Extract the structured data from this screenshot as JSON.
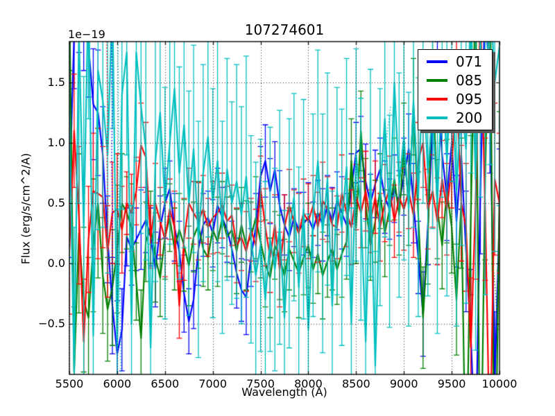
{
  "chart_data": {
    "type": "line",
    "title": "107274601",
    "xlabel": "Wavelength (A)",
    "ylabel": "Flux (erg/s/cm^2/A)",
    "offset_text": "1e−19",
    "xlim": [
      5500,
      10000
    ],
    "ylim": [
      -0.92,
      1.84
    ],
    "xticks": [
      5500,
      6000,
      6500,
      7000,
      7500,
      8000,
      8500,
      9000,
      9500,
      10000
    ],
    "xtick_labels": [
      "5500",
      "6000",
      "6500",
      "7000",
      "7500",
      "8000",
      "8500",
      "9000",
      "9500",
      "10000"
    ],
    "yticks": [
      -0.5,
      0.0,
      0.5,
      1.0,
      1.5
    ],
    "ytick_labels": [
      "−0.5",
      "0.0",
      "0.5",
      "1.0",
      "1.5"
    ],
    "grid": true,
    "grid_style": "dotted",
    "x_start": 5500,
    "x_step": 50,
    "legend": {
      "location": "upper right",
      "shadow": true,
      "entries": [
        {
          "label": "071",
          "color": "#0000ff"
        },
        {
          "label": "085",
          "color": "#008000"
        },
        {
          "label": "095",
          "color": "#ff0000"
        },
        {
          "label": "200",
          "color": "#00bfbf"
        }
      ]
    },
    "series": [
      {
        "name": "071",
        "color": "#0000ff",
        "values": [
          0.55,
          1.9,
          2.3,
          2.1,
          1.8,
          1.32,
          1.25,
          0.9,
          0.2,
          -0.35,
          -0.75,
          -0.55,
          0.22,
          0.12,
          0.2,
          0.28,
          0.36,
          0.22,
          -0.05,
          0.3,
          0.5,
          0.62,
          0.3,
          0.1,
          -0.25,
          -0.48,
          -0.3,
          0.12,
          0.32,
          0.38,
          0.25,
          0.48,
          0.38,
          0.28,
          0.12,
          -0.08,
          -0.22,
          -0.28,
          0.05,
          0.3,
          0.72,
          0.85,
          0.6,
          0.78,
          0.48,
          0.32,
          0.22,
          0.38,
          0.28,
          0.33,
          0.38,
          0.28,
          0.42,
          0.32,
          0.48,
          0.35,
          0.52,
          0.42,
          0.32,
          0.62,
          0.92,
          0.95,
          0.68,
          0.5,
          0.66,
          0.78,
          0.55,
          0.45,
          0.62,
          0.5,
          0.72,
          0.95,
          0.5,
          0.05,
          -0.42,
          0.3,
          1.15,
          1.5,
          0.9,
          0.55,
          1.0,
          0.35,
          0.9,
          0.1,
          -0.6,
          -1.6,
          0.6,
          2.2,
          1.4,
          -1.0,
          0.4
        ],
        "errors": [
          0.5,
          0.45,
          0.55,
          0.5,
          0.42,
          0.46,
          0.52,
          0.4,
          0.36,
          0.4,
          0.44,
          0.34,
          0.24,
          0.3,
          0.26,
          0.33,
          0.27,
          0.24,
          0.31,
          0.26,
          0.29,
          0.23,
          0.28,
          0.25,
          0.32,
          0.27,
          0.24,
          0.3,
          0.26,
          0.22,
          0.28,
          0.31,
          0.25,
          0.27,
          0.23,
          0.29,
          0.26,
          0.31,
          0.24,
          0.28,
          0.25,
          0.3,
          0.27,
          0.23,
          0.29,
          0.25,
          0.28,
          0.24,
          0.31,
          0.26,
          0.29,
          0.23,
          0.27,
          0.3,
          0.25,
          0.28,
          0.24,
          0.3,
          0.26,
          0.29,
          0.25,
          0.27,
          0.31,
          0.24,
          0.28,
          0.26,
          0.3,
          0.25,
          0.28,
          0.27,
          0.32,
          0.29,
          0.33,
          0.3,
          0.35,
          0.31,
          0.28,
          0.34,
          0.3,
          0.36,
          0.32,
          0.38,
          0.45,
          0.5,
          0.55,
          0.6,
          0.52,
          0.56,
          0.65,
          0.6,
          0.55
        ]
      },
      {
        "name": "085",
        "color": "#008000",
        "values": [
          2.2,
          -0.9,
          0.25,
          -0.3,
          -0.45,
          0.15,
          0.5,
          -0.1,
          -0.38,
          -0.2,
          0.12,
          0.5,
          0.42,
          0.3,
          -0.15,
          -0.62,
          0.18,
          0.3,
          0.05,
          -0.12,
          0.22,
          0.38,
          0.12,
          0.28,
          0.15,
          -0.02,
          0.22,
          0.32,
          0.12,
          0.05,
          0.28,
          0.18,
          0.38,
          0.22,
          0.28,
          0.1,
          0.32,
          0.15,
          0.22,
          0.38,
          0.18,
          0.0,
          -0.12,
          0.15,
          0.05,
          -0.1,
          0.12,
          0.02,
          -0.08,
          0.05,
          0.15,
          -0.05,
          0.08,
          -0.1,
          0.02,
          0.12,
          -0.05,
          0.08,
          0.18,
          0.85,
          0.3,
          1.1,
          0.5,
          0.15,
          0.35,
          0.6,
          0.25,
          0.45,
          0.7,
          0.4,
          0.95,
          0.5,
          1.3,
          0.4,
          -0.45,
          0.2,
          1.6,
          0.45,
          0.15,
          0.6,
          0.3,
          -0.3,
          0.5,
          -1.9,
          0.4,
          2.3,
          -2.1,
          0.7,
          2.5,
          -2.3,
          0.6
        ],
        "errors": [
          0.6,
          0.54,
          0.66,
          0.6,
          0.5,
          0.55,
          0.62,
          0.48,
          0.43,
          0.48,
          0.53,
          0.41,
          0.3,
          0.36,
          0.32,
          0.4,
          0.33,
          0.3,
          0.37,
          0.32,
          0.35,
          0.28,
          0.34,
          0.3,
          0.38,
          0.33,
          0.29,
          0.36,
          0.31,
          0.27,
          0.34,
          0.37,
          0.3,
          0.33,
          0.28,
          0.35,
          0.31,
          0.37,
          0.29,
          0.34,
          0.3,
          0.36,
          0.33,
          0.28,
          0.35,
          0.3,
          0.34,
          0.29,
          0.37,
          0.31,
          0.35,
          0.28,
          0.33,
          0.36,
          0.3,
          0.34,
          0.29,
          0.36,
          0.31,
          0.35,
          0.3,
          0.33,
          0.37,
          0.29,
          0.34,
          0.31,
          0.36,
          0.3,
          0.34,
          0.33,
          0.38,
          0.35,
          0.4,
          0.36,
          0.42,
          0.37,
          0.34,
          0.41,
          0.36,
          0.43,
          0.38,
          0.46,
          0.54,
          0.6,
          0.66,
          0.72,
          0.62,
          0.67,
          0.78,
          0.72,
          0.66
        ]
      },
      {
        "name": "095",
        "color": "#ff0000",
        "values": [
          0.1,
          1.1,
          0.4,
          -0.65,
          0.2,
          0.6,
          0.58,
          0.55,
          0.1,
          0.42,
          0.45,
          0.28,
          0.5,
          0.42,
          0.6,
          0.98,
          0.88,
          0.22,
          0.5,
          0.35,
          0.2,
          0.45,
          0.3,
          -0.35,
          0.2,
          0.5,
          0.42,
          0.35,
          0.45,
          0.3,
          0.38,
          0.42,
          0.48,
          0.35,
          0.4,
          0.15,
          0.22,
          0.1,
          0.28,
          0.15,
          0.62,
          0.3,
          0.05,
          0.32,
          -0.05,
          0.3,
          0.48,
          0.35,
          0.25,
          0.42,
          0.35,
          0.48,
          0.3,
          0.52,
          0.45,
          0.32,
          0.3,
          0.58,
          0.42,
          0.3,
          0.55,
          0.42,
          0.6,
          0.35,
          0.55,
          0.3,
          0.5,
          0.62,
          0.35,
          0.55,
          0.45,
          0.6,
          0.4,
          0.85,
          1.0,
          0.45,
          0.6,
          0.35,
          0.7,
          0.45,
          0.8,
          1.5,
          0.5,
          0.3,
          -0.7,
          0.5,
          2.1,
          0.45,
          -1.6,
          0.7,
          0.5
        ],
        "errors": [
          0.52,
          0.47,
          0.57,
          0.52,
          0.44,
          0.48,
          0.54,
          0.42,
          0.38,
          0.42,
          0.46,
          0.36,
          0.26,
          0.32,
          0.28,
          0.35,
          0.29,
          0.26,
          0.33,
          0.28,
          0.31,
          0.25,
          0.3,
          0.27,
          0.34,
          0.29,
          0.26,
          0.32,
          0.28,
          0.24,
          0.3,
          0.33,
          0.27,
          0.29,
          0.25,
          0.31,
          0.28,
          0.33,
          0.26,
          0.3,
          0.27,
          0.32,
          0.29,
          0.25,
          0.31,
          0.27,
          0.3,
          0.26,
          0.33,
          0.28,
          0.31,
          0.25,
          0.29,
          0.32,
          0.27,
          0.3,
          0.26,
          0.32,
          0.28,
          0.31,
          0.27,
          0.29,
          0.33,
          0.26,
          0.3,
          0.28,
          0.32,
          0.27,
          0.3,
          0.29,
          0.34,
          0.31,
          0.35,
          0.32,
          0.37,
          0.33,
          0.3,
          0.36,
          0.32,
          0.38,
          0.34,
          0.4,
          0.48,
          0.53,
          0.58,
          0.63,
          0.55,
          0.59,
          0.68,
          0.63,
          0.58
        ]
      },
      {
        "name": "200",
        "color": "#00bfbf",
        "values": [
          1.3,
          -0.9,
          1.9,
          0.3,
          2.3,
          -0.6,
          1.6,
          1.35,
          0.9,
          2.2,
          -0.7,
          1.4,
          1.75,
          -0.5,
          1.75,
          1.3,
          0.95,
          -0.7,
          0.85,
          1.25,
          0.5,
          1.0,
          1.45,
          0.75,
          1.15,
          0.5,
          0.95,
          0.2,
          0.75,
          1.05,
          0.5,
          0.85,
          0.3,
          0.78,
          0.5,
          0.68,
          0.4,
          0.72,
          0.2,
          -0.1,
          0.15,
          -0.3,
          0.2,
          -0.05,
          0.3,
          -0.45,
          0.25,
          0.55,
          -0.2,
          0.45,
          -0.55,
          0.4,
          0.85,
          0.25,
          0.7,
          -0.35,
          0.6,
          0.3,
          0.8,
          -0.5,
          0.9,
          0.45,
          -0.65,
          0.75,
          -0.85,
          0.55,
          1.2,
          0.35,
          1.5,
          0.65,
          1.05,
          0.45,
          1.35,
          0.55,
          1.6,
          0.75,
          1.25,
          0.5,
          1.55,
          0.85,
          1.7,
          0.6,
          1.35,
          0.95,
          2.1,
          0.7,
          1.85,
          1.1,
          2.3,
          1.5,
          1.8
        ],
        "errors": [
          1.3,
          1.2,
          1.4,
          1.25,
          1.1,
          1.18,
          1.32,
          1.05,
          0.98,
          1.08,
          1.15,
          0.95,
          0.85,
          0.98,
          0.9,
          1.05,
          0.92,
          0.86,
          1.0,
          0.9,
          0.96,
          0.84,
          0.94,
          0.88,
          1.02,
          0.93,
          0.86,
          0.98,
          0.9,
          0.83,
          0.95,
          1.0,
          0.88,
          0.92,
          0.84,
          0.97,
          0.9,
          1.0,
          0.86,
          0.94,
          0.88,
          0.98,
          0.93,
          0.84,
          0.97,
          0.89,
          0.95,
          0.86,
          1.0,
          0.91,
          0.96,
          0.84,
          0.92,
          0.99,
          0.88,
          0.95,
          0.86,
          0.98,
          0.9,
          0.96,
          0.88,
          0.92,
          1.0,
          0.86,
          0.95,
          0.9,
          0.98,
          0.88,
          0.94,
          0.93,
          1.02,
          0.97,
          1.05,
          0.99,
          1.1,
          1.02,
          0.96,
          1.08,
          1.0,
          1.12,
          1.02,
          1.12,
          1.2,
          1.28,
          1.35,
          1.42,
          1.3,
          1.36,
          1.48,
          1.4,
          1.32
        ]
      }
    ],
    "dotted_segments": [
      {
        "color": "#ff0000",
        "points": [
          [
            5890,
            1.84
          ],
          [
            5900,
            1.25
          ],
          [
            5893,
            0.85
          ],
          [
            5903,
            0.45
          ],
          [
            5897,
            0.05
          ],
          [
            5905,
            -0.15
          ]
        ]
      },
      {
        "color": "#0000ff",
        "points": [
          [
            5940,
            1.84
          ],
          [
            5948,
            1.25
          ],
          [
            5942,
            0.8
          ],
          [
            5952,
            0.45
          ],
          [
            5946,
            0.0
          ],
          [
            5955,
            -0.45
          ]
        ]
      },
      {
        "color": "#00bfbf",
        "points": [
          [
            6008,
            1.84
          ],
          [
            6015,
            1.2
          ],
          [
            6010,
            0.7
          ],
          [
            6018,
            0.45
          ]
        ]
      },
      {
        "color": "#00bfbf",
        "points": [
          [
            6030,
            -0.15
          ],
          [
            6038,
            -0.92
          ]
        ]
      },
      {
        "color": "#00bfbf",
        "points": [
          [
            8790,
            0.85
          ],
          [
            8860,
            1.3
          ]
        ]
      },
      {
        "color": "#008000",
        "points": [
          [
            9925,
            0.05
          ],
          [
            9955,
            -0.2
          ],
          [
            9985,
            -0.55
          ]
        ]
      }
    ]
  }
}
